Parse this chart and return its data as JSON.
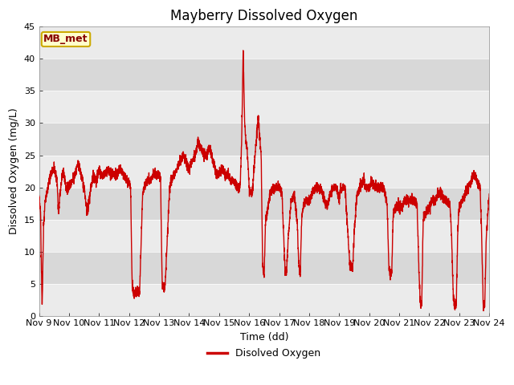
{
  "title": "Mayberry Dissolved Oxygen",
  "xlabel": "Time (dd)",
  "ylabel": "Dissolved Oxygen (mg/L)",
  "legend_label": "Disolved Oxygen",
  "annotation_text": "MB_met",
  "ylim": [
    0,
    45
  ],
  "yticks": [
    0,
    5,
    10,
    15,
    20,
    25,
    30,
    35,
    40,
    45
  ],
  "line_color": "#cc0000",
  "line_width": 1.0,
  "plot_bg_light": "#ebebeb",
  "plot_bg_dark": "#d8d8d8",
  "annotation_bg": "#ffffcc",
  "annotation_border": "#ccaa00",
  "annotation_text_color": "#880000",
  "title_fontsize": 12,
  "axis_label_fontsize": 9,
  "tick_label_fontsize": 8,
  "legend_fontsize": 9,
  "x_start": 9,
  "x_end": 24,
  "xtick_positions": [
    9,
    10,
    11,
    12,
    13,
    14,
    15,
    16,
    17,
    18,
    19,
    20,
    21,
    22,
    23,
    24
  ],
  "xtick_labels": [
    "Nov 9",
    "Nov 10",
    "Nov 11",
    "Nov 12",
    "Nov 13",
    "Nov 14",
    "Nov 15",
    "Nov 16",
    "Nov 17",
    "Nov 18",
    "Nov 19",
    "Nov 20",
    "Nov 21",
    "Nov 22",
    "Nov 23",
    "Nov 24"
  ]
}
